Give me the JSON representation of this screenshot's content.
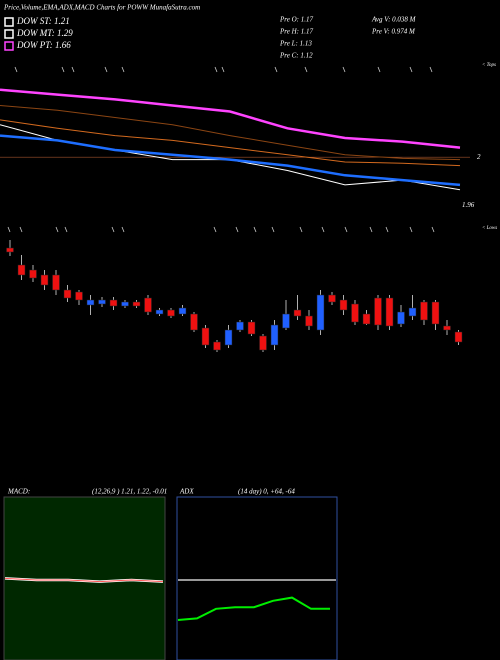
{
  "header": {
    "title": "Price,Volume,EMA,ADX,MACD Charts for POWW MunafaSutra.com"
  },
  "legend": [
    {
      "label": "DOW ST: 1.21",
      "color": "#ffffff"
    },
    {
      "label": "DOW MT: 1.29",
      "color": "#ffffff"
    },
    {
      "label": "DOW PT: 1.66",
      "color": "#ff44ff"
    }
  ],
  "info": [
    [
      "Pre  O: 1.17",
      "Avg V: 0.038  M"
    ],
    [
      "Pre  H: 1.17",
      "Pre  V: 0.974 M"
    ],
    [
      "Pre  L: 1.13"
    ],
    [
      "Pre  C: 1.12"
    ]
  ],
  "chart_data": [
    {
      "type": "line",
      "annotation": "< Tops",
      "ylim": [
        1.952,
        2.06
      ],
      "yticks": [
        2,
        1.96
      ],
      "series": [
        {
          "color": "#ff44ff",
          "width": 2.5,
          "values": [
            2.056,
            2.052,
            2.048,
            2.043,
            2.038,
            2.024,
            2.016,
            2.013,
            2.008
          ]
        },
        {
          "color": "#8b4513",
          "width": 1,
          "values": [
            2.043,
            2.039,
            2.033,
            2.027,
            2.018,
            2.01,
            2.002,
            1.999,
            1.998
          ]
        },
        {
          "color": "#d2691e",
          "width": 1,
          "values": [
            2.031,
            2.024,
            2.018,
            2.014,
            2.008,
            2.002,
            1.996,
            1.995,
            1.993
          ]
        },
        {
          "color": "#ffffff",
          "width": 1,
          "values": [
            2.027,
            2.014,
            2.006,
            1.998,
            1.998,
            1.989,
            1.977,
            1.981,
            1.973
          ]
        },
        {
          "color": "#1e6eff",
          "width": 2.5,
          "values": [
            2.018,
            2.014,
            2.006,
            2.002,
            1.998,
            1.993,
            1.985,
            1.981,
            1.977
          ]
        }
      ]
    },
    {
      "type": "candlestick",
      "annotation": "< Lows",
      "ylim": [
        1.06,
        1.34
      ],
      "up_color": "#2060ff",
      "down_color": "#ee1111",
      "open": [
        1.304,
        1.27,
        1.26,
        1.25,
        1.25,
        1.22,
        1.216,
        1.19,
        1.192,
        1.2,
        1.188,
        1.196,
        1.204,
        1.172,
        1.18,
        1.172,
        1.172,
        1.144,
        1.116,
        1.11,
        1.14,
        1.156,
        1.128,
        1.11,
        1.144,
        1.18,
        1.168,
        1.14,
        1.21,
        1.2,
        1.192,
        1.172,
        1.204,
        1.204,
        1.152,
        1.168,
        1.196,
        1.196,
        1.148,
        1.136
      ],
      "close": [
        1.296,
        1.25,
        1.244,
        1.23,
        1.22,
        1.204,
        1.2,
        1.2,
        1.2,
        1.188,
        1.196,
        1.188,
        1.176,
        1.18,
        1.168,
        1.184,
        1.14,
        1.11,
        1.1,
        1.14,
        1.156,
        1.132,
        1.1,
        1.15,
        1.172,
        1.168,
        1.148,
        1.21,
        1.196,
        1.18,
        1.156,
        1.152,
        1.15,
        1.148,
        1.176,
        1.184,
        1.16,
        1.152,
        1.14,
        1.116
      ],
      "high": [
        1.32,
        1.29,
        1.27,
        1.26,
        1.26,
        1.23,
        1.22,
        1.21,
        1.206,
        1.206,
        1.2,
        1.2,
        1.21,
        1.184,
        1.184,
        1.19,
        1.176,
        1.15,
        1.12,
        1.15,
        1.16,
        1.16,
        1.132,
        1.16,
        1.2,
        1.21,
        1.18,
        1.22,
        1.216,
        1.21,
        1.2,
        1.18,
        1.21,
        1.21,
        1.19,
        1.21,
        1.2,
        1.2,
        1.16,
        1.14
      ],
      "low": [
        1.288,
        1.24,
        1.236,
        1.22,
        1.21,
        1.196,
        1.19,
        1.17,
        1.186,
        1.18,
        1.184,
        1.184,
        1.17,
        1.168,
        1.164,
        1.168,
        1.136,
        1.104,
        1.096,
        1.104,
        1.136,
        1.128,
        1.096,
        1.1,
        1.14,
        1.16,
        1.14,
        1.13,
        1.19,
        1.17,
        1.15,
        1.15,
        1.14,
        1.14,
        1.146,
        1.16,
        1.15,
        1.14,
        1.13,
        1.11
      ]
    },
    {
      "type": "macd",
      "label": "MACD:",
      "params": "(12,26,9 ) 1.21, 1.22, -0.01",
      "ylim": [
        -0.5,
        0.5
      ],
      "color": "#ff5555",
      "values": [
        0.01,
        0,
        0,
        -0.01,
        0,
        -0.01
      ]
    },
    {
      "type": "adx",
      "label": "ADX",
      "params": "(14 day) 0, +64, -64",
      "ylim": [
        0,
        100
      ],
      "color": "#00ee00",
      "level": 50,
      "values": [
        25,
        26,
        32,
        33,
        33,
        37,
        39,
        32,
        32
      ]
    }
  ]
}
